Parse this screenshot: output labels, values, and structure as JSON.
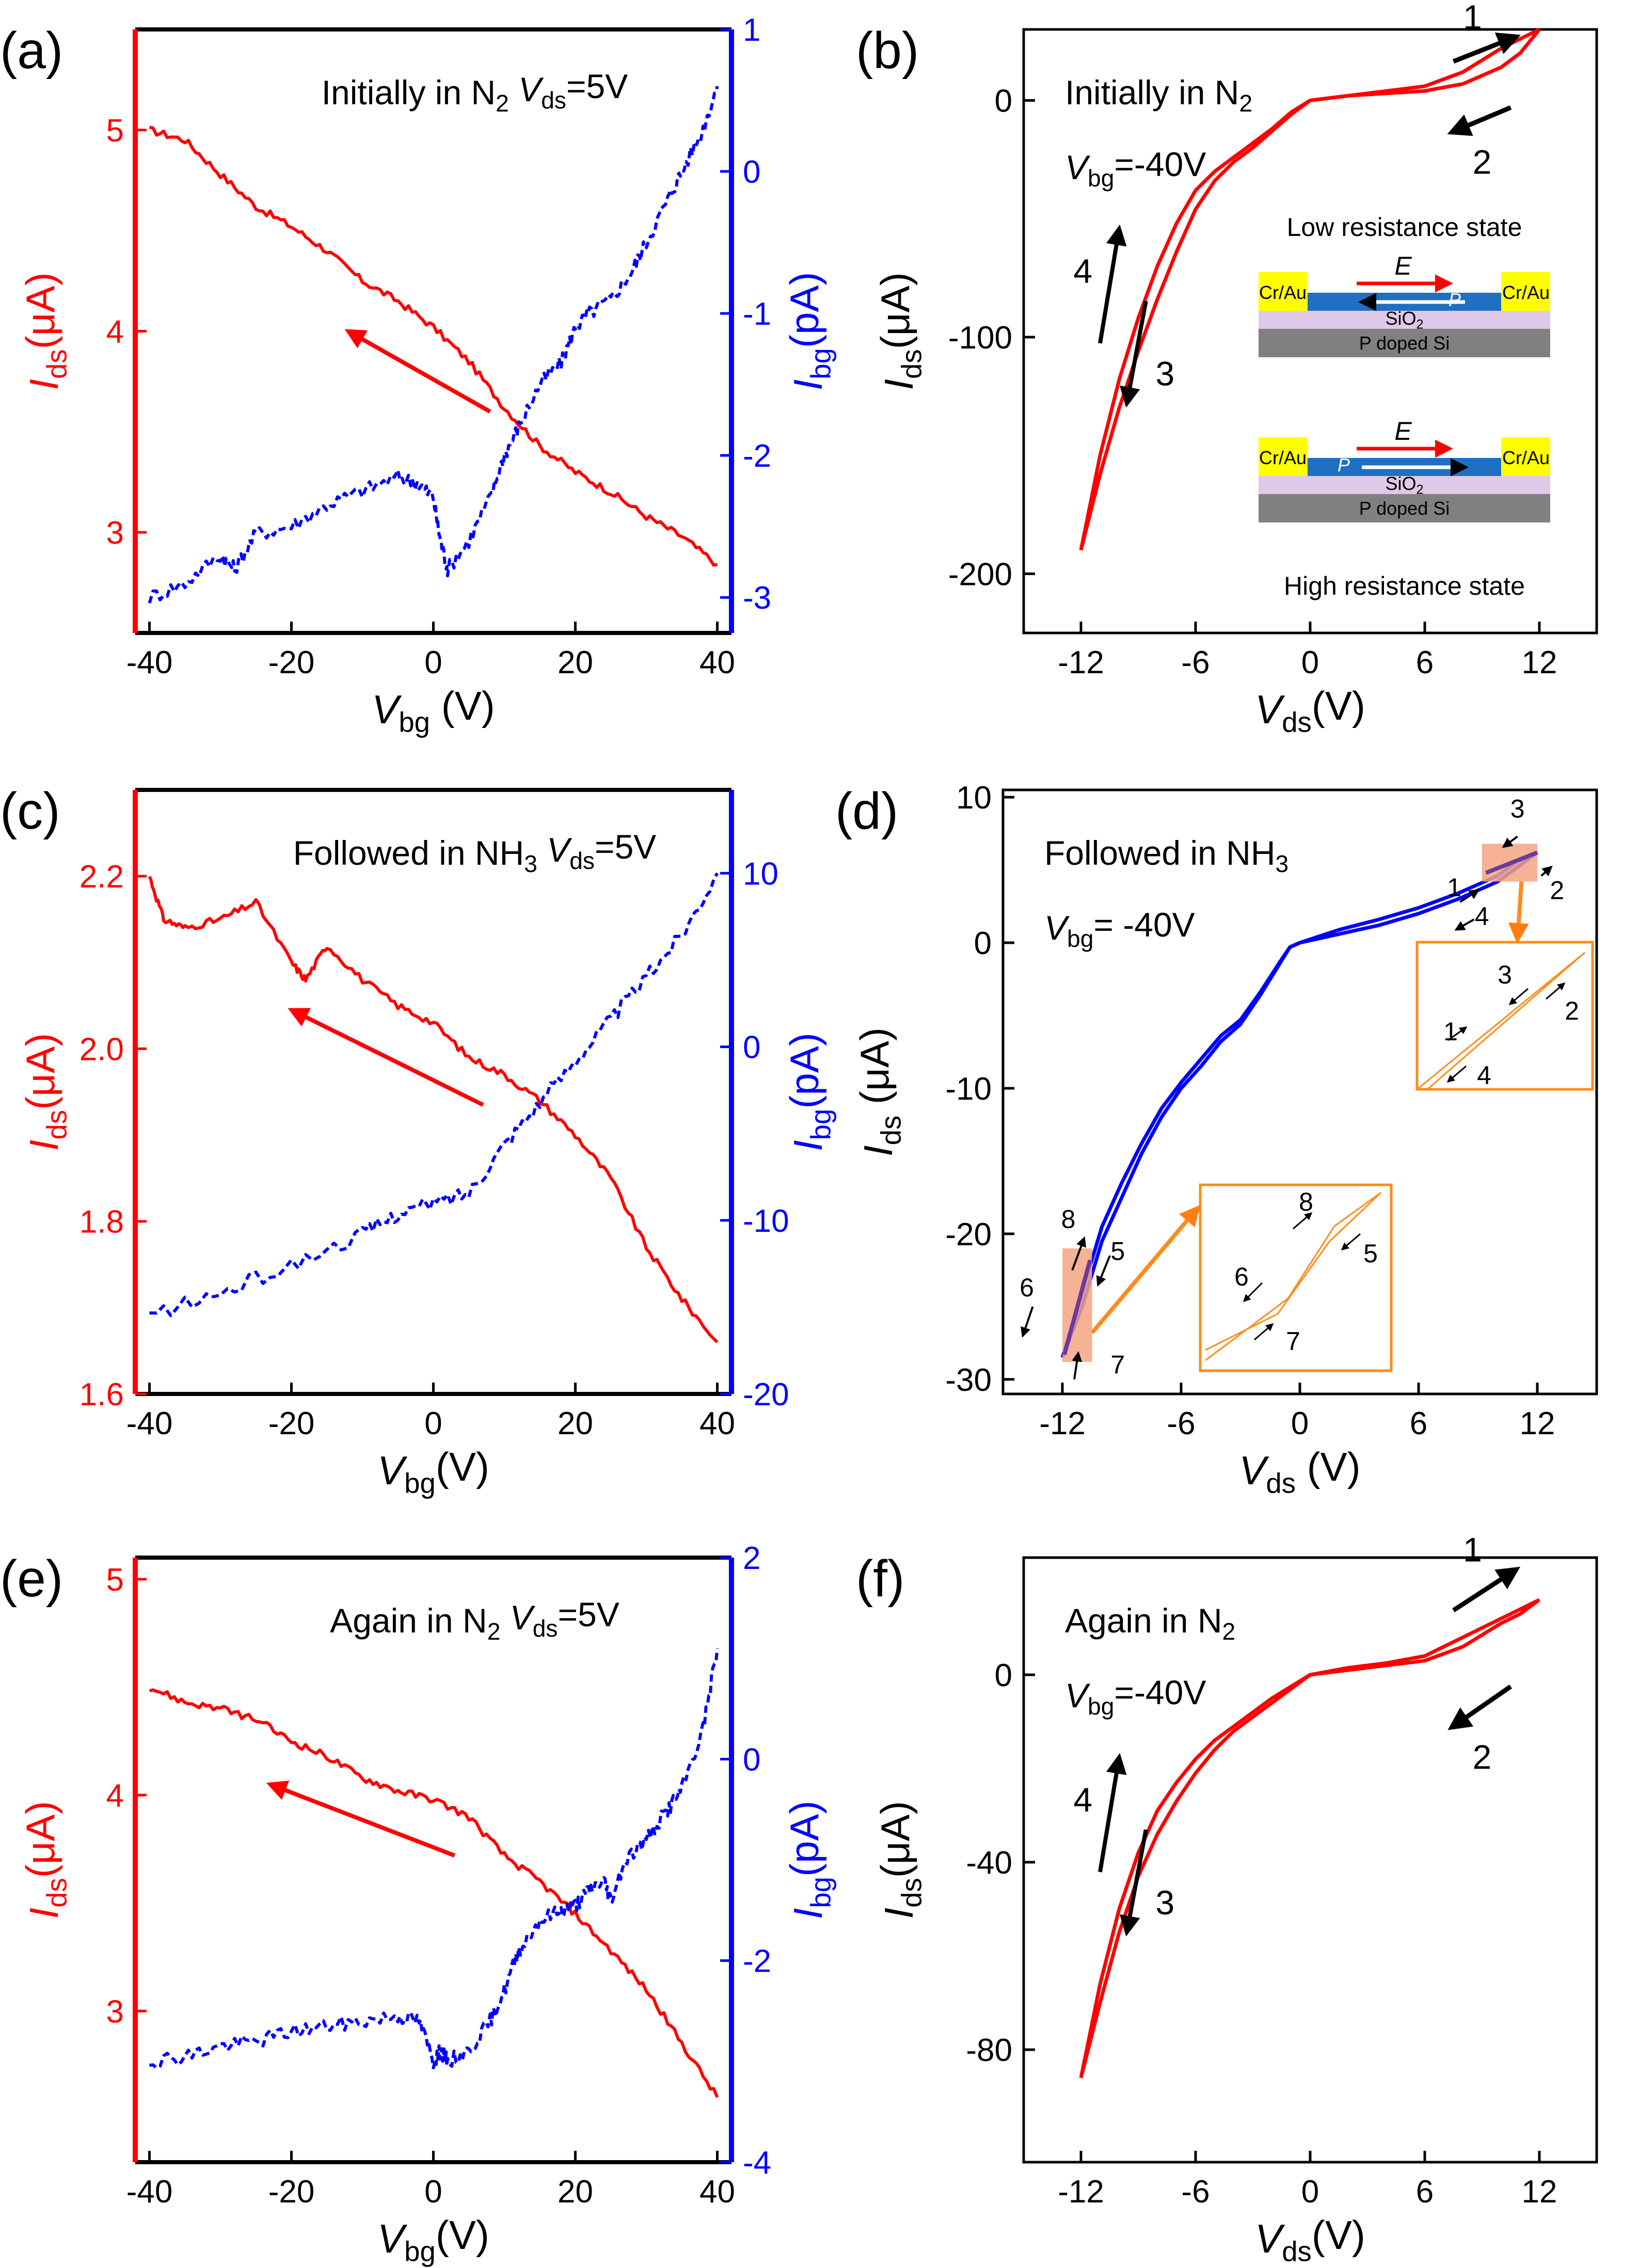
{
  "figure_kind": "multi-panel scientific figure",
  "chart_data": [
    {
      "id": "a",
      "type": "line",
      "panel_label": "(a)",
      "annotation": {
        "prefix": "Initially in N",
        "prefix_sub": "2",
        "var": "V",
        "var_sub": "ds",
        "value": "=5V"
      },
      "xlabel": {
        "var": "V",
        "sub": "bg",
        "unit": " (V)"
      },
      "ylabel_left": {
        "var": "I",
        "sub": "ds",
        "unit": "(μA)"
      },
      "ylabel_right": {
        "var": "I",
        "sub": "bg",
        "unit": "(pA)"
      },
      "xlim": [
        -42,
        42
      ],
      "ylim_left": [
        2.5,
        5.5
      ],
      "ylim_right": [
        -3.25,
        1.0
      ],
      "xticks": [
        -40,
        -20,
        0,
        20,
        40
      ],
      "xtick_labels": [
        "-40",
        "-20",
        "0",
        "20",
        "40"
      ],
      "yticks_left": [
        3,
        4,
        5
      ],
      "ytick_labels_left": [
        "3",
        "4",
        "5"
      ],
      "yticks_right": [
        -3,
        -2,
        -1,
        0,
        1
      ],
      "ytick_labels_right": [
        "-3",
        "-2",
        "-1",
        "0",
        "1"
      ],
      "left_color": "#ff0000",
      "right_color": "#0000ff",
      "series": [
        {
          "name": "I_ds",
          "axis": "left",
          "color": "#ff0000",
          "style": "solid",
          "x": [
            -40,
            -35,
            -30,
            -25,
            -20,
            -15,
            -10,
            -5,
            0,
            5,
            10,
            15,
            20,
            25,
            30,
            35,
            40
          ],
          "y": [
            5.0,
            4.95,
            4.78,
            4.62,
            4.52,
            4.4,
            4.25,
            4.15,
            4.02,
            3.85,
            3.62,
            3.43,
            3.3,
            3.2,
            3.08,
            2.98,
            2.84
          ]
        },
        {
          "name": "I_bg",
          "axis": "right",
          "color": "#0000ff",
          "style": "dashed",
          "x": [
            -40,
            -35,
            -30,
            -28,
            -25,
            -20,
            -15,
            -10,
            -5,
            -2,
            0,
            1,
            2,
            5,
            8,
            10,
            12,
            15,
            18,
            20,
            22,
            25,
            28,
            30,
            33,
            35,
            38,
            40
          ],
          "y": [
            -3.0,
            -2.9,
            -2.7,
            -2.8,
            -2.55,
            -2.5,
            -2.35,
            -2.25,
            -2.15,
            -2.2,
            -2.3,
            -2.6,
            -2.8,
            -2.6,
            -2.3,
            -2.0,
            -1.8,
            -1.5,
            -1.35,
            -1.1,
            -1.0,
            -0.9,
            -0.7,
            -0.5,
            -0.2,
            0.0,
            0.3,
            0.6
          ]
        }
      ],
      "arrows": [
        {
          "from": [
            8,
            3.6
          ],
          "to": [
            -12,
            4.0
          ],
          "axis": "left"
        }
      ]
    },
    {
      "id": "b",
      "type": "line",
      "panel_label": "(b)",
      "annotations": [
        {
          "prefix": "Initially in N",
          "prefix_sub": "2"
        },
        {
          "var": "V",
          "var_sub": "bg",
          "value": "=-40V"
        }
      ],
      "xlabel": {
        "var": "V",
        "sub": "ds",
        "unit": "(V)"
      },
      "ylabel": {
        "var": "I",
        "sub": "ds",
        "unit": "(μA)"
      },
      "xlim": [
        -15,
        15
      ],
      "ylim": [
        -225,
        30
      ],
      "xticks": [
        -12,
        -6,
        0,
        6,
        12
      ],
      "xtick_labels": [
        "-12",
        "-6",
        "0",
        "6",
        "12"
      ],
      "yticks": [
        -200,
        -100,
        0
      ],
      "ytick_labels": [
        "-200",
        "-100",
        "0"
      ],
      "series": [
        {
          "name": "sweep-outer",
          "color": "#ff0000",
          "x": [
            -12,
            -11,
            -10,
            -9,
            -8,
            -7,
            -6,
            -5,
            -4,
            -3,
            -2,
            -1,
            0,
            2,
            4,
            6,
            8,
            10,
            11,
            12
          ],
          "y": [
            -190,
            -158,
            -130,
            -106,
            -84,
            -64,
            -46,
            -34,
            -26,
            -20,
            -13,
            -6,
            0,
            2,
            4,
            6,
            12,
            22,
            26,
            30
          ]
        },
        {
          "name": "sweep-inner",
          "color": "#ff0000",
          "x": [
            -12,
            -11,
            -10,
            -9,
            -8,
            -7,
            -6,
            -5,
            -4,
            -3,
            -2,
            -1,
            0,
            2,
            4,
            6,
            8,
            10,
            11,
            12
          ],
          "y": [
            -190,
            -150,
            -118,
            -92,
            -70,
            -52,
            -38,
            -30,
            -24,
            -18,
            -12,
            -5,
            0,
            2,
            3,
            4,
            7,
            14,
            20,
            30
          ]
        }
      ],
      "arrow_labels": [
        "1",
        "2",
        "3",
        "4"
      ],
      "inset": {
        "top_caption": "Low resistance state",
        "bottom_caption": "High resistance state",
        "electrode": "Cr/Au",
        "field": "E",
        "polarization": "P",
        "oxide": "SiO",
        "oxide_sub": "2",
        "substrate": "P doped Si"
      }
    },
    {
      "id": "c",
      "type": "line",
      "panel_label": "(c)",
      "annotation": {
        "prefix": "Followed in NH",
        "prefix_sub": "3",
        "var": "V",
        "var_sub": "ds",
        "value": "=5V"
      },
      "xlabel": {
        "var": "V",
        "sub": "bg",
        "unit": "(V)"
      },
      "ylabel_left": {
        "var": "I",
        "sub": "ds",
        "unit": "(μA)"
      },
      "ylabel_right": {
        "var": "I",
        "sub": "bg",
        "unit": "(pA)"
      },
      "xlim": [
        -42,
        42
      ],
      "ylim_left": [
        1.6,
        2.3
      ],
      "ylim_right": [
        -20,
        14.8
      ],
      "xticks": [
        -40,
        -20,
        0,
        20,
        40
      ],
      "xtick_labels": [
        "-40",
        "-20",
        "0",
        "20",
        "40"
      ],
      "yticks_left": [
        1.6,
        1.8,
        2.0,
        2.2
      ],
      "ytick_labels_left": [
        "1.6",
        "1.8",
        "2.0",
        "2.2"
      ],
      "yticks_right": [
        -20,
        -10,
        0,
        10
      ],
      "ytick_labels_right": [
        "-20",
        "-10",
        "0",
        "10"
      ],
      "series": [
        {
          "name": "I_ds",
          "axis": "left",
          "color": "#ff0000",
          "style": "solid",
          "x": [
            -40,
            -38,
            -35,
            -30,
            -25,
            -20,
            -18,
            -15,
            -10,
            -5,
            0,
            5,
            10,
            15,
            20,
            25,
            30,
            35,
            40
          ],
          "y": [
            2.2,
            2.15,
            2.14,
            2.15,
            2.17,
            2.1,
            2.08,
            2.12,
            2.08,
            2.05,
            2.03,
            1.99,
            1.97,
            1.94,
            1.9,
            1.85,
            1.77,
            1.71,
            1.66
          ]
        },
        {
          "name": "I_bg",
          "axis": "right",
          "color": "#0000ff",
          "style": "dashed",
          "x": [
            -40,
            -30,
            -20,
            -10,
            -5,
            0,
            5,
            10,
            15,
            20,
            25,
            30,
            35,
            40
          ],
          "y": [
            -15.5,
            -14.2,
            -12.6,
            -10.8,
            -9.6,
            -9.0,
            -8.4,
            -5.6,
            -3.2,
            -0.8,
            1.6,
            4.0,
            6.5,
            10.0
          ]
        }
      ],
      "arrows": [
        {
          "from": [
            7,
            1.935
          ],
          "to": [
            -20,
            2.045
          ],
          "axis": "left"
        }
      ]
    },
    {
      "id": "d",
      "type": "line",
      "panel_label": "(d)",
      "annotations": [
        {
          "prefix": "Followed in NH",
          "prefix_sub": "3"
        },
        {
          "var": "V",
          "var_sub": "bg",
          "value": "= -40V"
        }
      ],
      "xlabel": {
        "var": "V",
        "sub": "ds",
        "unit": " (V)"
      },
      "ylabel": {
        "var": "I",
        "sub": "ds",
        "unit": " (μA)"
      },
      "xlim": [
        -15,
        15
      ],
      "ylim": [
        -31,
        10.5
      ],
      "xticks": [
        -12,
        -6,
        0,
        6,
        12
      ],
      "xtick_labels": [
        "-12",
        "-6",
        "0",
        "6",
        "12"
      ],
      "yticks": [
        -30,
        -20,
        -10,
        0,
        10
      ],
      "ytick_labels": [
        "-30",
        "-20",
        "-10",
        "0",
        "10"
      ],
      "series": [
        {
          "name": "sweep-outer",
          "color": "#0000ff",
          "x": [
            -12,
            -11,
            -10,
            -9,
            -8,
            -7,
            -6,
            -5,
            -4,
            -3,
            -2,
            -1,
            -0.5,
            0,
            2,
            4,
            6,
            8,
            10,
            11,
            12
          ],
          "y": [
            -28.5,
            -25.0,
            -20.5,
            -17.5,
            -14.5,
            -12.0,
            -10.0,
            -8.5,
            -6.8,
            -5.6,
            -3.6,
            -1.4,
            -0.3,
            0.0,
            0.6,
            1.2,
            2.0,
            3.0,
            4.2,
            5.2,
            6.2
          ]
        },
        {
          "name": "sweep-inner",
          "color": "#0000ff",
          "x": [
            -12,
            -11,
            -10,
            -9,
            -8,
            -7,
            -6,
            -5,
            -4,
            -3,
            -2,
            -1,
            -0.5,
            0,
            2,
            4,
            6,
            8,
            10,
            11,
            12
          ],
          "y": [
            -28.5,
            -24.0,
            -19.5,
            -16.5,
            -13.8,
            -11.4,
            -9.6,
            -8.0,
            -6.4,
            -5.3,
            -3.4,
            -1.3,
            -0.3,
            0.0,
            0.9,
            1.6,
            2.4,
            3.4,
            4.6,
            5.6,
            6.2
          ]
        }
      ],
      "arrow_labels": [
        "1",
        "2",
        "3",
        "4",
        "5",
        "6",
        "7",
        "8"
      ],
      "highlight_color": "#f4a582",
      "inset_border": "#ff8c1a"
    },
    {
      "id": "e",
      "type": "line",
      "panel_label": "(e)",
      "annotation": {
        "prefix": "Again in N",
        "prefix_sub": "2",
        "var": "V",
        "var_sub": "ds",
        "value": "=5V"
      },
      "xlabel": {
        "var": "V",
        "sub": "bg",
        "unit": "(V)"
      },
      "ylabel_left": {
        "var": "I",
        "sub": "ds",
        "unit": "(μA)"
      },
      "ylabel_right": {
        "var": "I",
        "sub": "bg",
        "unit": "(pA)"
      },
      "xlim": [
        -42,
        42
      ],
      "ylim_left": [
        2.3,
        5.1
      ],
      "ylim_right": [
        -4,
        2
      ],
      "xticks": [
        -40,
        -20,
        0,
        20,
        40
      ],
      "xtick_labels": [
        "-40",
        "-20",
        "0",
        "20",
        "40"
      ],
      "yticks_left": [
        3,
        4,
        5
      ],
      "ytick_labels_left": [
        "3",
        "4",
        "5"
      ],
      "yticks_right": [
        -4,
        -2,
        0,
        2
      ],
      "ytick_labels_right": [
        "-4",
        "-2",
        "0",
        "2"
      ],
      "series": [
        {
          "name": "I_ds",
          "axis": "left",
          "color": "#ff0000",
          "style": "solid",
          "x": [
            -40,
            -35,
            -30,
            -25,
            -20,
            -15,
            -10,
            -5,
            0,
            5,
            10,
            15,
            20,
            25,
            30,
            35,
            40
          ],
          "y": [
            4.5,
            4.43,
            4.4,
            4.35,
            4.25,
            4.18,
            4.08,
            4.02,
            3.98,
            3.9,
            3.72,
            3.6,
            3.45,
            3.28,
            3.1,
            2.85,
            2.6
          ]
        },
        {
          "name": "I_bg",
          "axis": "right",
          "color": "#0000ff",
          "style": "dashed",
          "x": [
            -40,
            -35,
            -30,
            -25,
            -20,
            -15,
            -10,
            -5,
            -2,
            0,
            1,
            2,
            5,
            8,
            10,
            12,
            15,
            18,
            20,
            22,
            24,
            25,
            27,
            30,
            33,
            35,
            38,
            40
          ],
          "y": [
            -3.0,
            -2.95,
            -2.85,
            -2.8,
            -2.7,
            -2.65,
            -2.6,
            -2.55,
            -2.6,
            -3.0,
            -2.9,
            -3.0,
            -2.9,
            -2.6,
            -2.3,
            -1.9,
            -1.6,
            -1.5,
            -1.45,
            -1.3,
            -1.2,
            -1.4,
            -1.0,
            -0.8,
            -0.5,
            -0.3,
            0.3,
            1.1
          ]
        }
      ],
      "arrows": [
        {
          "from": [
            3,
            3.72
          ],
          "to": [
            -23,
            4.05
          ],
          "axis": "left"
        }
      ]
    },
    {
      "id": "f",
      "type": "line",
      "panel_label": "(f)",
      "annotations": [
        {
          "prefix": "Again in N",
          "prefix_sub": "2"
        },
        {
          "var": "V",
          "var_sub": "bg",
          "value": "=-40V"
        }
      ],
      "xlabel": {
        "var": "V",
        "sub": "ds",
        "unit": "(V)"
      },
      "ylabel": {
        "var": "I",
        "sub": "ds",
        "unit": "(μA)"
      },
      "xlim": [
        -15,
        15
      ],
      "ylim": [
        -104,
        25
      ],
      "xticks": [
        -12,
        -6,
        0,
        6,
        12
      ],
      "xtick_labels": [
        "-12",
        "-6",
        "0",
        "6",
        "12"
      ],
      "yticks": [
        -80,
        -40,
        0
      ],
      "ytick_labels": [
        "-80",
        "-40",
        "0"
      ],
      "series": [
        {
          "name": "sweep-outer",
          "color": "#ff0000",
          "x": [
            -12,
            -11,
            -10,
            -9,
            -8,
            -7,
            -6,
            -5,
            -4,
            -3,
            -2,
            -1,
            0,
            2,
            4,
            6,
            8,
            10,
            11,
            12
          ],
          "y": [
            -86,
            -70,
            -55,
            -43,
            -34,
            -27,
            -21,
            -16,
            -12,
            -9,
            -6,
            -3,
            0,
            1,
            2,
            3,
            6,
            11,
            13,
            16
          ]
        },
        {
          "name": "sweep-inner",
          "color": "#ff0000",
          "x": [
            -12,
            -11,
            -10,
            -9,
            -8,
            -7,
            -6,
            -5,
            -4,
            -3,
            -2,
            -1,
            0,
            2,
            4,
            6,
            8,
            10,
            11,
            12
          ],
          "y": [
            -86,
            -66,
            -50,
            -38,
            -29,
            -23,
            -18,
            -14,
            -11,
            -8,
            -5,
            -2.5,
            0,
            1.5,
            2.5,
            4,
            8,
            12,
            14,
            16
          ]
        }
      ],
      "arrow_labels": [
        "1",
        "2",
        "3",
        "4"
      ]
    }
  ]
}
